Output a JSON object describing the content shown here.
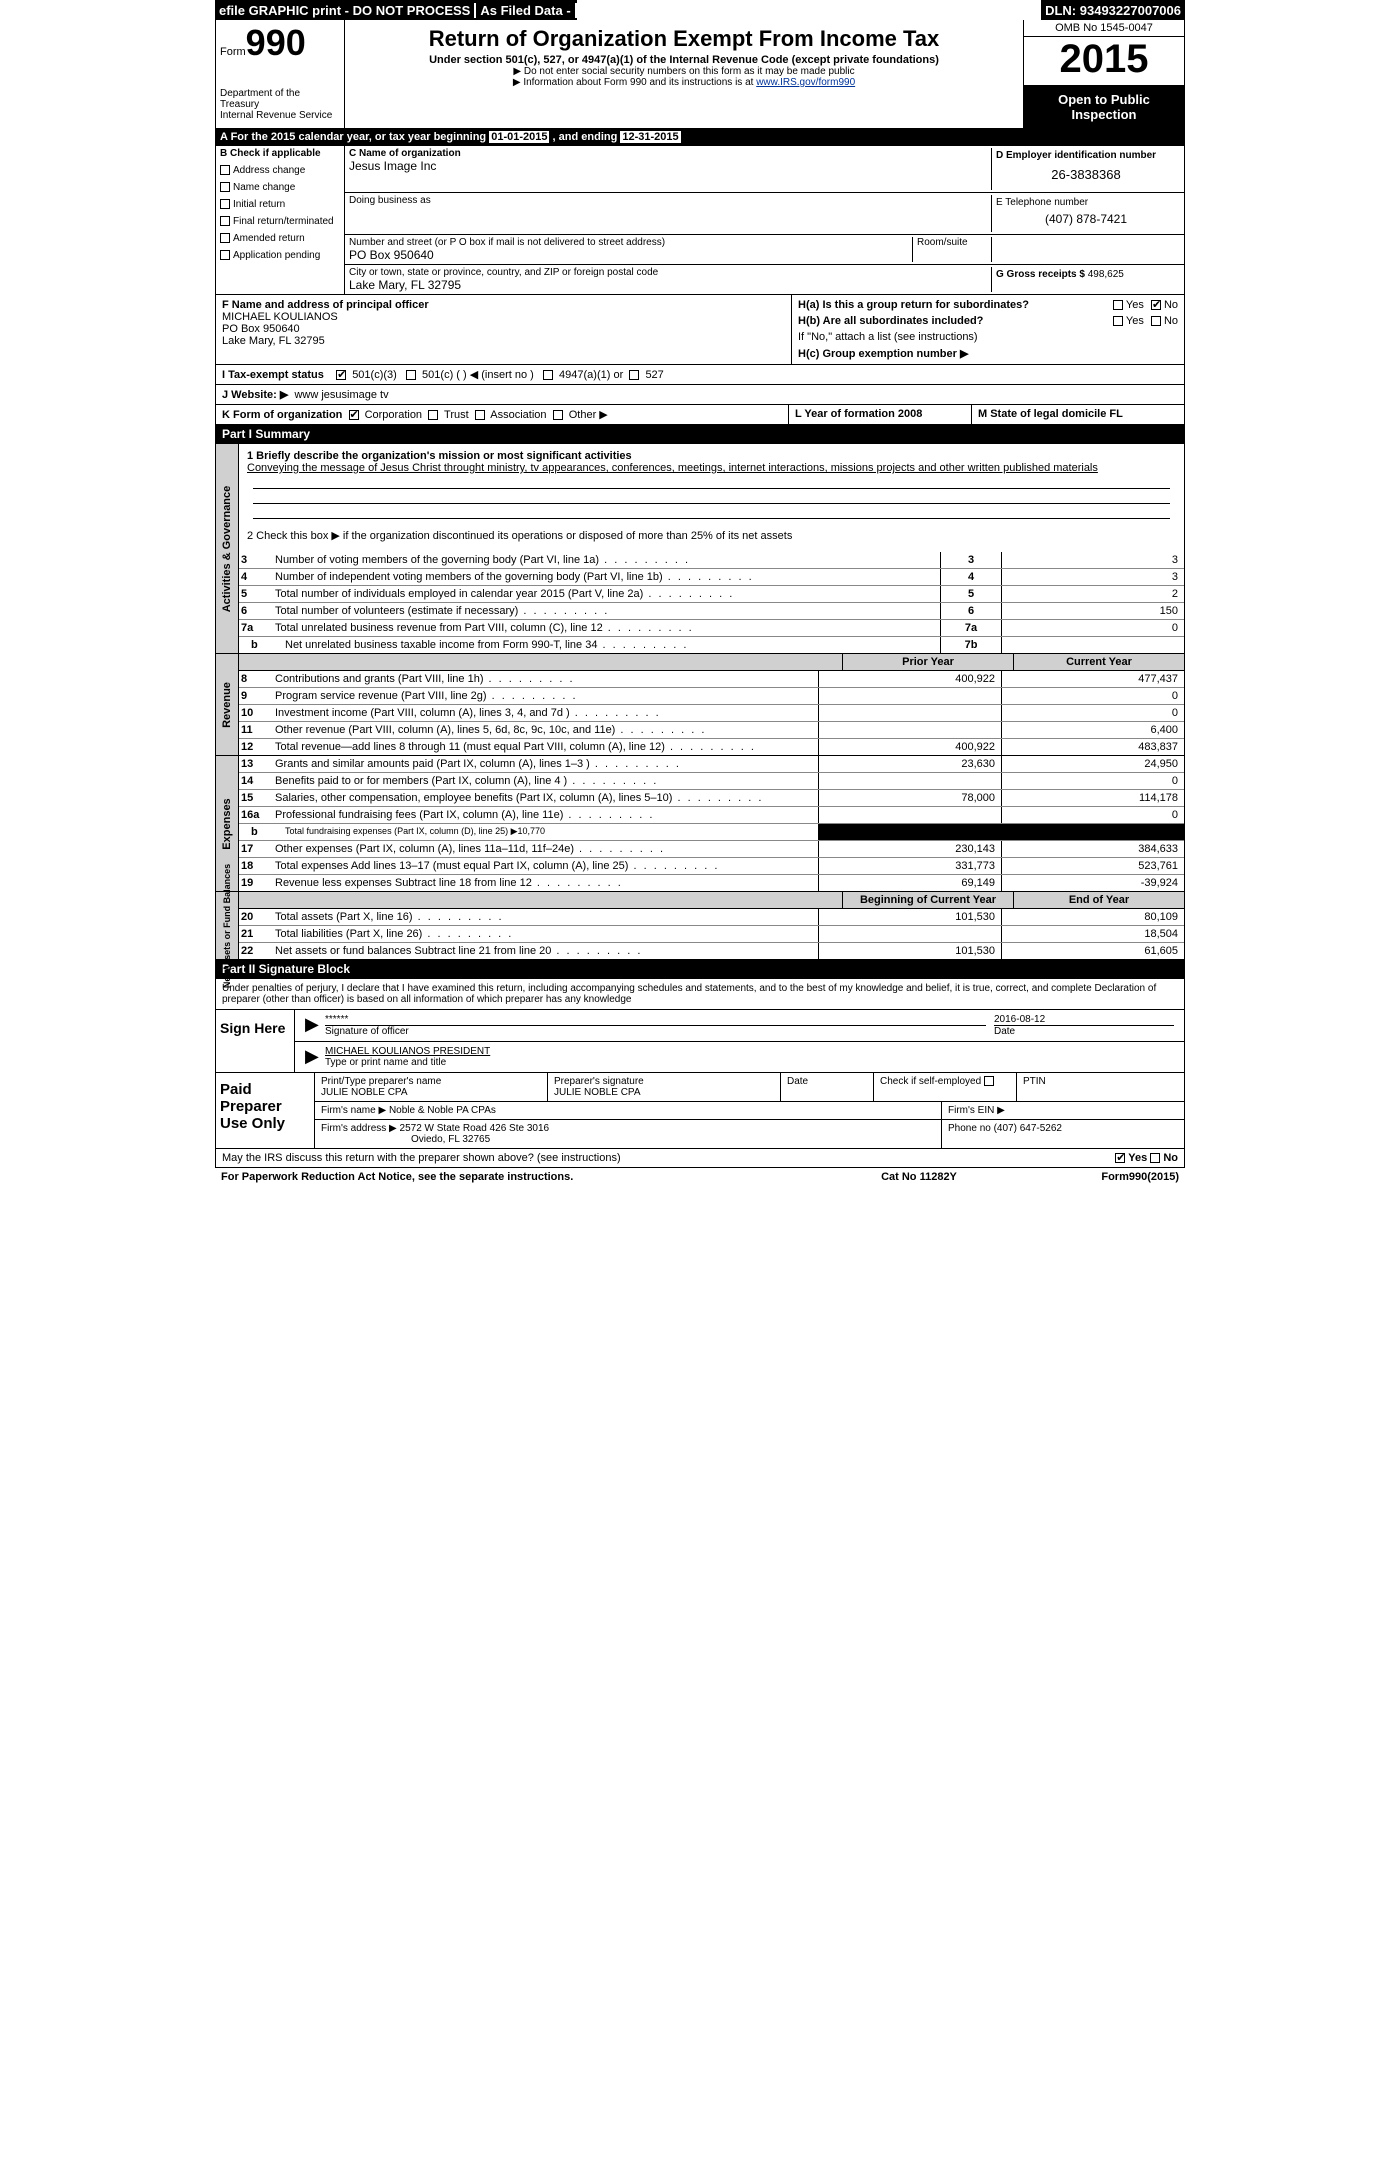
{
  "colors": {
    "black": "#000000",
    "white": "#ffffff",
    "grey": "#d0d0d0",
    "link": "#003399"
  },
  "top": {
    "efile": "efile GRAPHIC print - DO NOT PROCESS",
    "asfiled": "As Filed Data -",
    "dln_label": "DLN:",
    "dln": "93493227007006"
  },
  "header": {
    "form_prefix": "Form",
    "form_num": "990",
    "dept1": "Department of the Treasury",
    "dept2": "Internal Revenue Service",
    "title": "Return of Organization Exempt From Income Tax",
    "sub1": "Under section 501(c), 527, or 4947(a)(1) of the Internal Revenue Code (except private foundations)",
    "sub2a": "▶ Do not enter social security numbers on this form as it may be made public",
    "sub2b_pre": "▶ Information about Form 990 and its instructions is at ",
    "sub2b_link": "www.IRS.gov/form990",
    "omb": "OMB No 1545-0047",
    "year": "2015",
    "open": "Open to Public Inspection"
  },
  "A": {
    "text_pre": "A  For the 2015 calendar year, or tax year beginning ",
    "begin": "01-01-2015",
    "mid": " , and ending ",
    "end": "12-31-2015"
  },
  "B": {
    "label": "B  Check if applicable",
    "items": [
      "Address change",
      "Name change",
      "Initial return",
      "Final return/terminated",
      "Amended return",
      "Application pending"
    ]
  },
  "C": {
    "name_label": "C Name of organization",
    "name": "Jesus Image Inc",
    "dba_label": "Doing business as",
    "dba": "",
    "addr_label": "Number and street (or P O box if mail is not delivered to street address)",
    "room_label": "Room/suite",
    "addr": "PO Box 950640",
    "city_label": "City or town, state or province, country, and ZIP or foreign postal code",
    "city": "Lake Mary, FL  32795"
  },
  "D": {
    "label": "D Employer identification number",
    "val": "26-3838368"
  },
  "E": {
    "label": "E Telephone number",
    "val": "(407) 878-7421"
  },
  "G": {
    "label": "G Gross receipts $",
    "val": "498,625"
  },
  "F": {
    "label": "F   Name and address of principal officer",
    "name": "MICHAEL KOULIANOS",
    "addr1": "PO Box 950640",
    "addr2": "Lake Mary, FL  32795"
  },
  "H": {
    "a": "H(a)  Is this a group return for subordinates?",
    "a_yes": "Yes",
    "a_no": "No",
    "b": "H(b)  Are all subordinates included?",
    "b_note": "If \"No,\" attach a list  (see instructions)",
    "c": "H(c)  Group exemption number ▶"
  },
  "I": {
    "label": "I  Tax-exempt status",
    "c3": "501(c)(3)",
    "c": "501(c) (  ) ◀ (insert no )",
    "a1": "4947(a)(1) or",
    "s527": "527"
  },
  "J": {
    "label": "J  Website: ▶",
    "val": "www jesusimage tv"
  },
  "K": {
    "left": "K Form of organization",
    "corp": "Corporation",
    "trust": "Trust",
    "assoc": "Association",
    "other": "Other ▶",
    "L": "L Year of formation  2008",
    "M": "M State of legal domicile  FL"
  },
  "partI": "Part I     Summary",
  "gov": {
    "vert": "Activities & Governance",
    "q1": "1 Briefly describe the organization's mission or most significant activities",
    "q1_ans": "Conveying the message of Jesus Christ throught ministry, tv appearances, conferences, meetings, internet interactions, missions projects and other written published materials",
    "q2": "2 Check this box ▶     if the organization discontinued its operations or disposed of more than 25% of its net assets",
    "rows": [
      {
        "n": "3",
        "t": "Number of voting members of the governing body (Part VI, line 1a)",
        "c": "3",
        "v": "3"
      },
      {
        "n": "4",
        "t": "Number of independent voting members of the governing body (Part VI, line 1b)",
        "c": "4",
        "v": "3"
      },
      {
        "n": "5",
        "t": "Total number of individuals employed in calendar year 2015 (Part V, line 2a)",
        "c": "5",
        "v": "2"
      },
      {
        "n": "6",
        "t": "Total number of volunteers (estimate if necessary)",
        "c": "6",
        "v": "150"
      },
      {
        "n": "7a",
        "t": "Total unrelated business revenue from Part VIII, column (C), line 12",
        "c": "7a",
        "v": "0"
      },
      {
        "n": "b",
        "sub": true,
        "t": "Net unrelated business taxable income from Form 990-T, line 34",
        "c": "7b",
        "v": ""
      }
    ]
  },
  "rev": {
    "vert": "Revenue",
    "head_prior": "Prior Year",
    "head_curr": "Current Year",
    "rows": [
      {
        "n": "8",
        "t": "Contributions and grants (Part VIII, line 1h)",
        "p": "400,922",
        "c": "477,437"
      },
      {
        "n": "9",
        "t": "Program service revenue (Part VIII, line 2g)",
        "p": "",
        "c": "0"
      },
      {
        "n": "10",
        "t": "Investment income (Part VIII, column (A), lines 3, 4, and 7d )",
        "p": "",
        "c": "0"
      },
      {
        "n": "11",
        "t": "Other revenue (Part VIII, column (A), lines 5, 6d, 8c, 9c, 10c, and 11e)",
        "p": "",
        "c": "6,400"
      },
      {
        "n": "12",
        "t": "Total revenue—add lines 8 through 11 (must equal Part VIII, column (A), line 12)",
        "p": "400,922",
        "c": "483,837"
      }
    ]
  },
  "exp": {
    "vert": "Expenses",
    "rows": [
      {
        "n": "13",
        "t": "Grants and similar amounts paid (Part IX, column (A), lines 1–3 )",
        "p": "23,630",
        "c": "24,950"
      },
      {
        "n": "14",
        "t": "Benefits paid to or for members (Part IX, column (A), line 4 )",
        "p": "",
        "c": "0"
      },
      {
        "n": "15",
        "t": "Salaries, other compensation, employee benefits (Part IX, column (A), lines 5–10)",
        "p": "78,000",
        "c": "114,178"
      },
      {
        "n": "16a",
        "t": "Professional fundraising fees (Part IX, column (A), line 11e)",
        "p": "",
        "c": "0"
      },
      {
        "n": "b",
        "sub": true,
        "t": "Total fundraising expenses (Part IX, column (D), line 25) ▶10,770",
        "black": true,
        "small": true
      },
      {
        "n": "17",
        "t": "Other expenses (Part IX, column (A), lines 11a–11d, 11f–24e)",
        "p": "230,143",
        "c": "384,633"
      },
      {
        "n": "18",
        "t": "Total expenses  Add lines 13–17 (must equal Part IX, column (A), line 25)",
        "p": "331,773",
        "c": "523,761"
      },
      {
        "n": "19",
        "t": "Revenue less expenses  Subtract line 18 from line 12",
        "p": "69,149",
        "c": "-39,924"
      }
    ]
  },
  "net": {
    "vert": "Net Assets or Fund Balances",
    "head_begin": "Beginning of Current Year",
    "head_end": "End of Year",
    "rows": [
      {
        "n": "20",
        "t": "Total assets (Part X, line 16)",
        "p": "101,530",
        "c": "80,109"
      },
      {
        "n": "21",
        "t": "Total liabilities (Part X, line 26)",
        "p": "",
        "c": "18,504"
      },
      {
        "n": "22",
        "t": "Net assets or fund balances  Subtract line 21 from line 20",
        "p": "101,530",
        "c": "61,605"
      }
    ]
  },
  "partII": "Part II     Signature Block",
  "perjury": "Under penalties of perjury, I declare that I have examined this return, including accompanying schedules and statements, and to the best of my knowledge and belief, it is true, correct, and complete  Declaration of preparer (other than officer) is based on all information of which preparer has any knowledge",
  "sign": {
    "side": "Sign Here",
    "stars": "******",
    "sig_of": "Signature of officer",
    "date": "2016-08-12",
    "date_lbl": "Date",
    "name": "MICHAEL KOULIANOS PRESIDENT",
    "type_lbl": "Type or print name and title"
  },
  "preparer": {
    "side": "Paid Preparer Use Only",
    "r1": {
      "a": "Print/Type preparer's name",
      "a_v": "JULIE NOBLE CPA",
      "b": "Preparer's signature",
      "b_v": "JULIE NOBLE CPA",
      "c": "Date",
      "d": "Check      if self-employed",
      "e": "PTIN"
    },
    "r2": {
      "a": "Firm's name   ▶",
      "a_v": "Noble & Noble PA CPAs",
      "b": "Firm's EIN ▶"
    },
    "r3": {
      "a": "Firm's address ▶",
      "a_v": "2572 W State Road 426 Ste 3016",
      "a_v2": "Oviedo, FL  32765",
      "b": "Phone no  (407) 647-5262"
    }
  },
  "may": "May the IRS discuss this return with the preparer shown above? (see instructions)",
  "may_yes": "Yes",
  "may_no": "No",
  "footer": {
    "left": "For Paperwork Reduction Act Notice, see the separate instructions.",
    "mid": "Cat No  11282Y",
    "right": "Form 990 (2015)"
  }
}
